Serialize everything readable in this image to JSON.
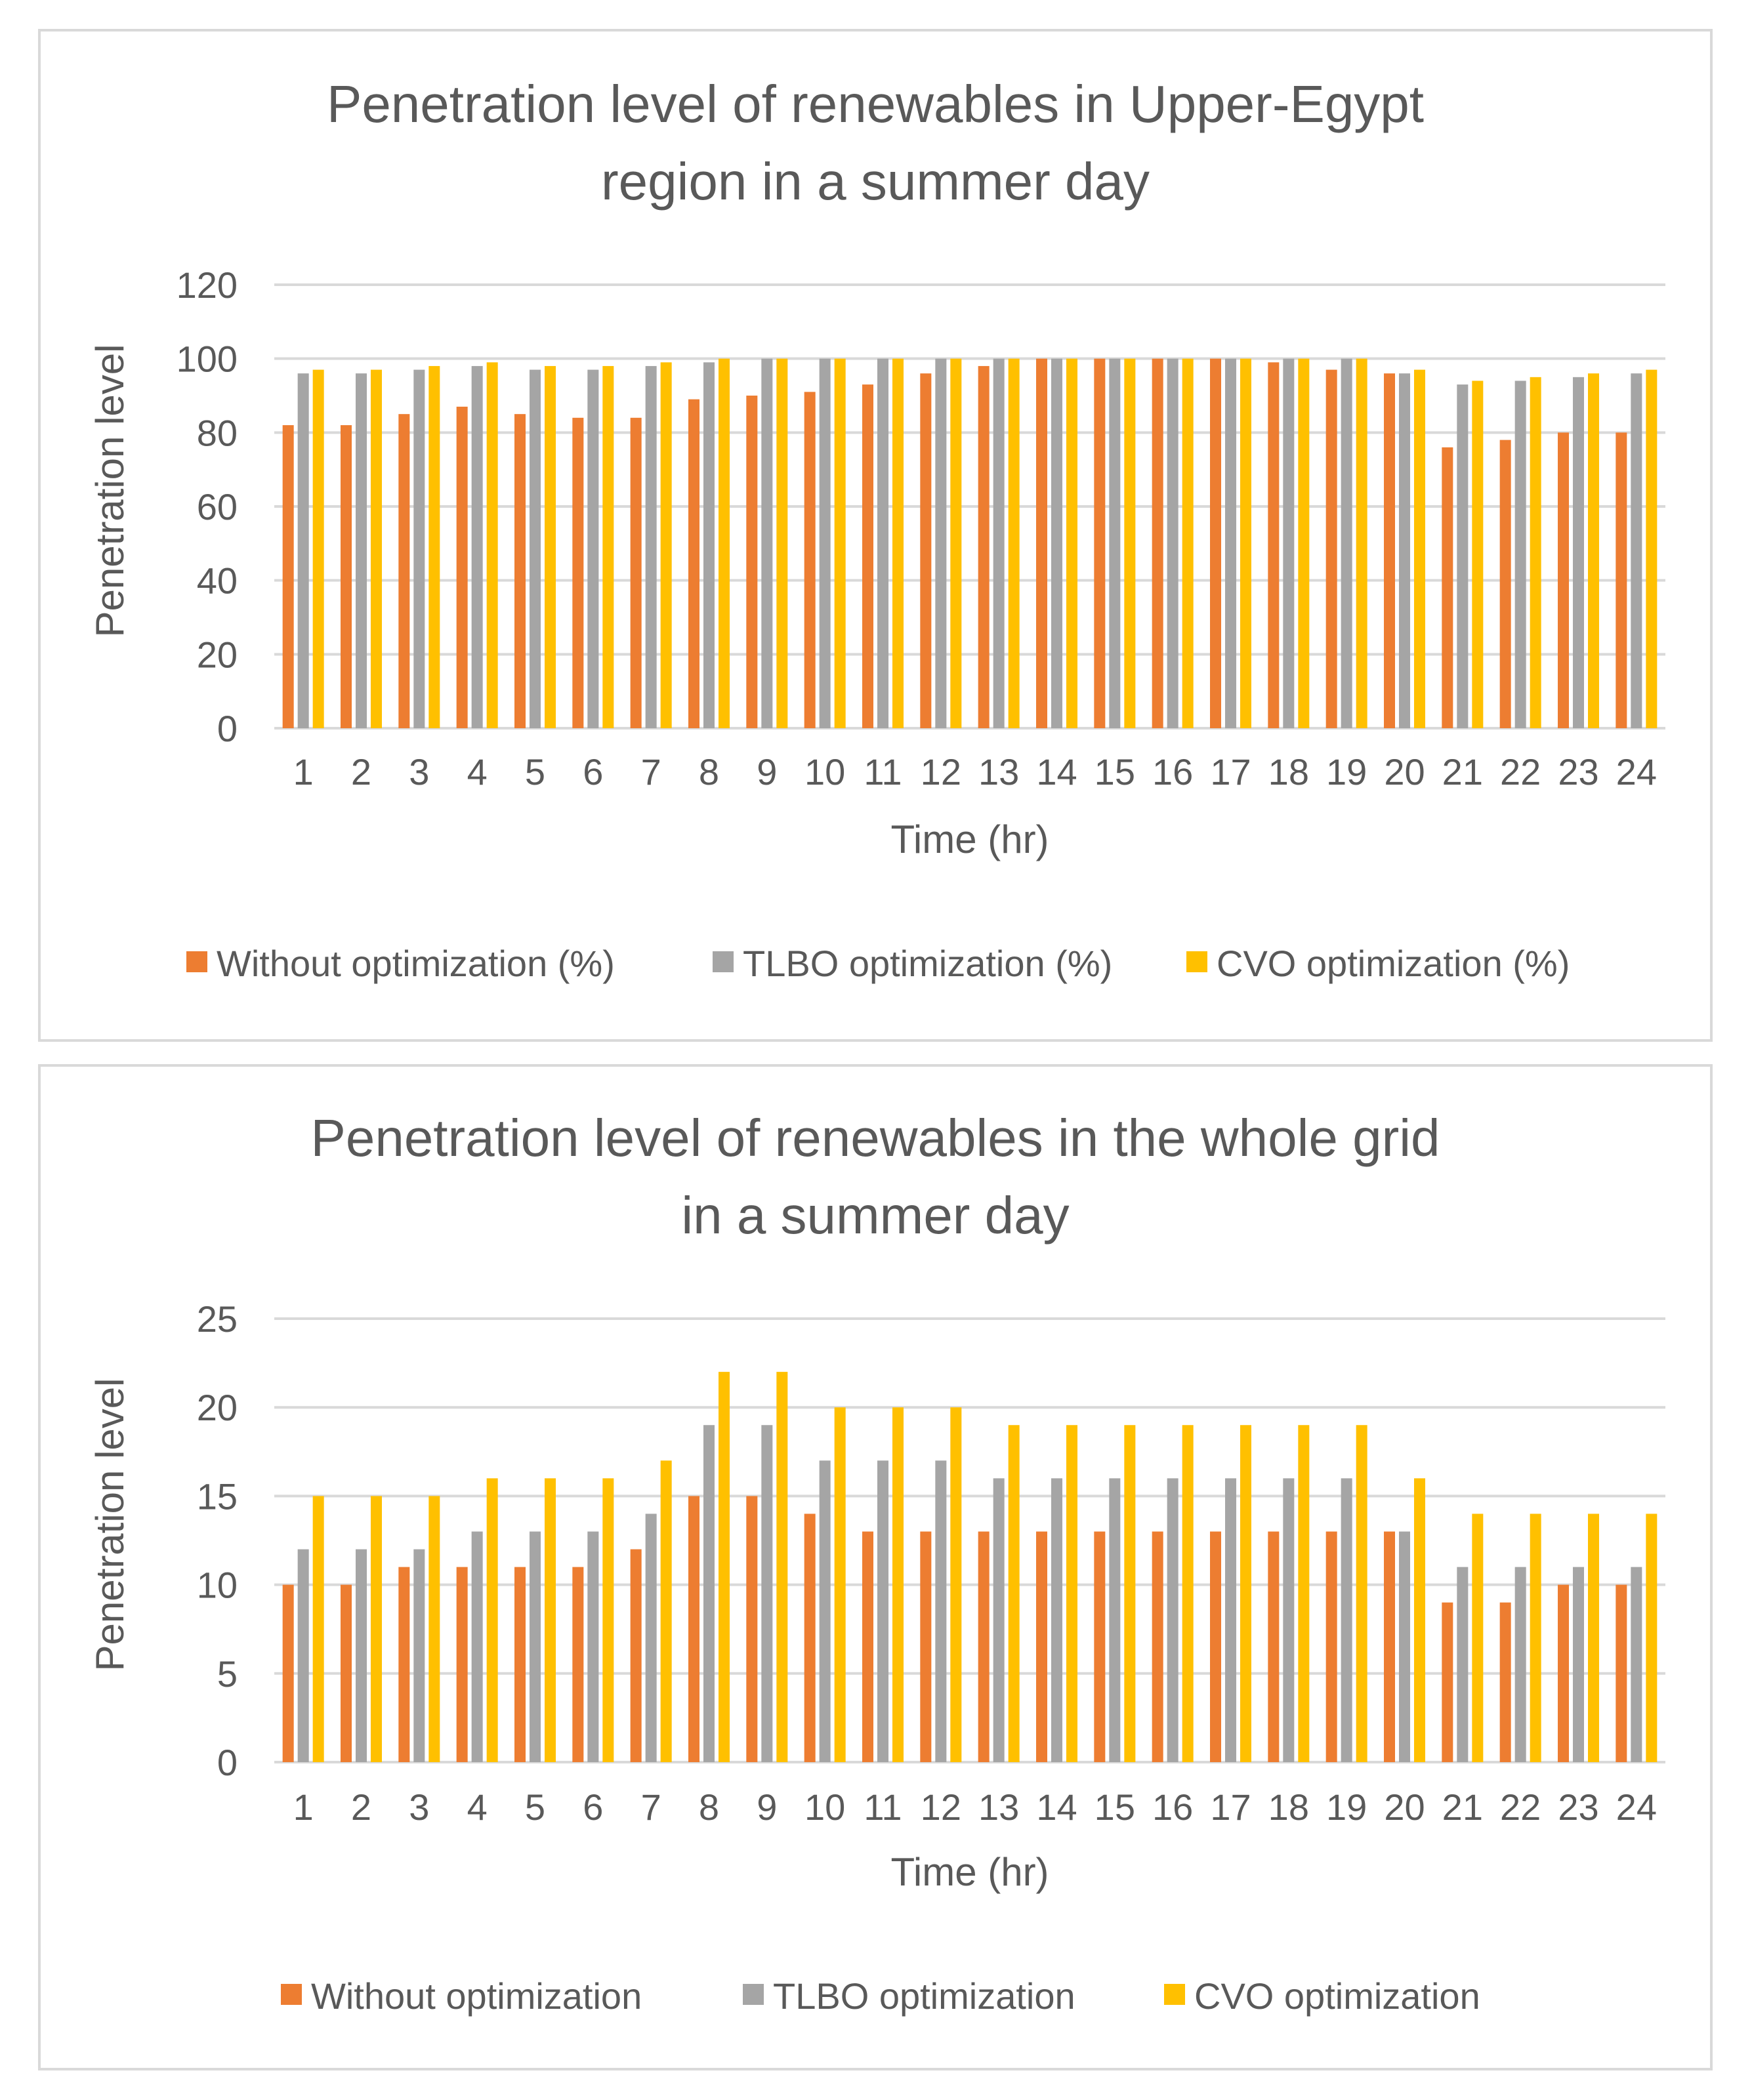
{
  "colors": {
    "without": "#ED7D31",
    "tlbo": "#A5A5A5",
    "cvo": "#FFC000",
    "grid": "#D9D9D9",
    "text": "#595959"
  },
  "chart_data": [
    {
      "type": "bar",
      "title_lines": [
        "Penetration level of renewables in Upper-Egypt",
        "region in a summer day"
      ],
      "xlabel": "Time (hr)",
      "ylabel": "Penetration level",
      "ylim": [
        0,
        120
      ],
      "yticks": [
        0,
        20,
        40,
        60,
        80,
        100,
        120
      ],
      "grid": true,
      "legend_position": "bottom",
      "categories": [
        "1",
        "2",
        "3",
        "4",
        "5",
        "6",
        "7",
        "8",
        "9",
        "10",
        "11",
        "12",
        "13",
        "14",
        "15",
        "16",
        "17",
        "18",
        "19",
        "20",
        "21",
        "22",
        "23",
        "24"
      ],
      "series": [
        {
          "name": "Without optimization (%)",
          "color_key": "without",
          "values": [
            82,
            82,
            85,
            87,
            85,
            84,
            84,
            89,
            90,
            91,
            93,
            96,
            98,
            100,
            100,
            100,
            100,
            99,
            97,
            96,
            76,
            78,
            80,
            80
          ]
        },
        {
          "name": "TLBO optimization (%)",
          "color_key": "tlbo",
          "values": [
            96,
            96,
            97,
            98,
            97,
            97,
            98,
            99,
            100,
            100,
            100,
            100,
            100,
            100,
            100,
            100,
            100,
            100,
            100,
            96,
            93,
            94,
            95,
            96
          ]
        },
        {
          "name": "CVO optimization (%)",
          "color_key": "cvo",
          "values": [
            97,
            97,
            98,
            99,
            98,
            98,
            99,
            100,
            100,
            100,
            100,
            100,
            100,
            100,
            100,
            100,
            100,
            100,
            100,
            97,
            94,
            95,
            96,
            97
          ]
        }
      ]
    },
    {
      "type": "bar",
      "title_lines": [
        "Penetration level of renewables in the whole grid",
        "in a summer day"
      ],
      "xlabel": "Time (hr)",
      "ylabel": "Penetration level",
      "ylim": [
        0,
        25
      ],
      "yticks": [
        0,
        5,
        10,
        15,
        20,
        25
      ],
      "grid": true,
      "legend_position": "bottom",
      "categories": [
        "1",
        "2",
        "3",
        "4",
        "5",
        "6",
        "7",
        "8",
        "9",
        "10",
        "11",
        "12",
        "13",
        "14",
        "15",
        "16",
        "17",
        "18",
        "19",
        "20",
        "21",
        "22",
        "23",
        "24"
      ],
      "series": [
        {
          "name": "Without optimization",
          "color_key": "without",
          "values": [
            10,
            10,
            11,
            11,
            11,
            11,
            12,
            15,
            15,
            14,
            13,
            13,
            13,
            13,
            13,
            13,
            13,
            13,
            13,
            13,
            9,
            9,
            10,
            10
          ]
        },
        {
          "name": "TLBO optimization",
          "color_key": "tlbo",
          "values": [
            12,
            12,
            12,
            13,
            13,
            13,
            14,
            19,
            19,
            17,
            17,
            17,
            16,
            16,
            16,
            16,
            16,
            16,
            16,
            13,
            11,
            11,
            11,
            11
          ]
        },
        {
          "name": "CVO optimization",
          "color_key": "cvo",
          "values": [
            15,
            15,
            15,
            16,
            16,
            16,
            17,
            22,
            22,
            20,
            20,
            20,
            19,
            19,
            19,
            19,
            19,
            19,
            19,
            16,
            14,
            14,
            14,
            14
          ]
        }
      ]
    }
  ]
}
